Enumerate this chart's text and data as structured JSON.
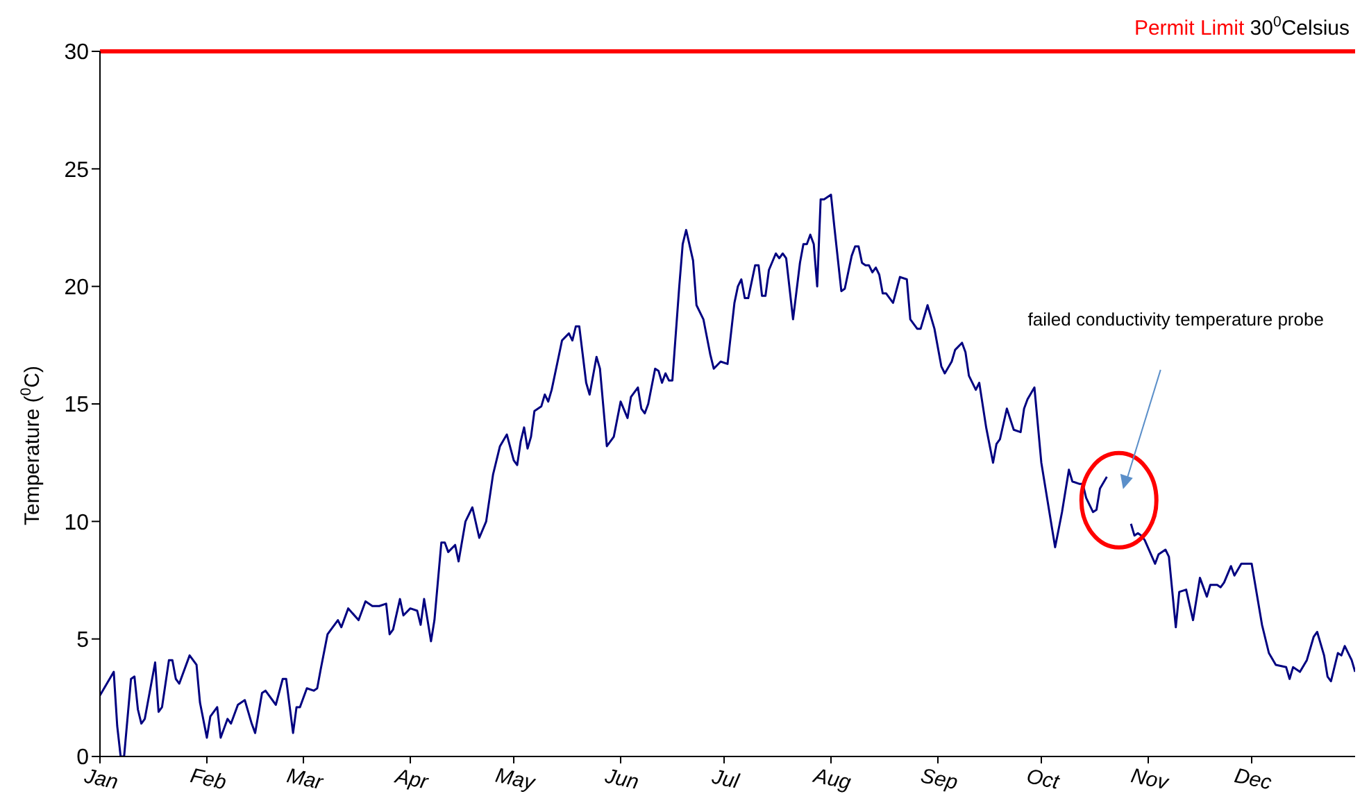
{
  "chart_data": {
    "type": "line",
    "ylabel": "Temperature ($^{0}$C)",
    "xlim": [
      "--01-01",
      "--12-31"
    ],
    "xticks": [
      {
        "value": "--01-01",
        "label": "Jan"
      },
      {
        "value": "--02-01",
        "label": "Feb"
      },
      {
        "value": "--03-01",
        "label": "Mar"
      },
      {
        "value": "--04-01",
        "label": "Apr"
      },
      {
        "value": "--05-01",
        "label": "May"
      },
      {
        "value": "--06-01",
        "label": "Jun"
      },
      {
        "value": "--07-01",
        "label": "Jul"
      },
      {
        "value": "--08-01",
        "label": "Aug"
      },
      {
        "value": "--09-01",
        "label": "Sep"
      },
      {
        "value": "--10-01",
        "label": "Oct"
      },
      {
        "value": "--11-01",
        "label": "Nov"
      },
      {
        "value": "--12-01",
        "label": "Dec"
      }
    ],
    "ylim": [
      0,
      30
    ],
    "yticks": [
      0,
      5,
      10,
      15,
      20,
      25,
      30
    ],
    "x": [
      "--01-01",
      "--01-05",
      "--01-06",
      "--01-07",
      "--01-08",
      "--01-10",
      "--01-11",
      "--01-12",
      "--01-13",
      "--01-14",
      "--01-17",
      "--01-18",
      "--01-19",
      "--01-21",
      "--01-22",
      "--01-23",
      "--01-24",
      "--01-27",
      "--01-29",
      "--01-30",
      "--02-01",
      "--02-02",
      "--02-04",
      "--02-05",
      "--02-07",
      "--02-08",
      "--02-10",
      "--02-12",
      "--02-14",
      "--02-15",
      "--02-17",
      "--02-18",
      "--02-21",
      "--02-23",
      "--02-24",
      "--02-26",
      "--02-27",
      "--02-28",
      "--03-02",
      "--03-04",
      "--03-05",
      "--03-06",
      "--03-08",
      "--03-11",
      "--03-12",
      "--03-14",
      "--03-17",
      "--03-19",
      "--03-21",
      "--03-23",
      "--03-25",
      "--03-26",
      "--03-27",
      "--03-29",
      "--03-30",
      "--04-01",
      "--04-03",
      "--04-04",
      "--04-05",
      "--04-07",
      "--04-08",
      "--04-10",
      "--04-11",
      "--04-12",
      "--04-14",
      "--04-15",
      "--04-17",
      "--04-19",
      "--04-21",
      "--04-23",
      "--04-25",
      "--04-27",
      "--04-29",
      "--05-01",
      "--05-02",
      "--05-03",
      "--05-04",
      "--05-05",
      "--05-06",
      "--05-07",
      "--05-09",
      "--05-10",
      "--05-11",
      "--05-12",
      "--05-15",
      "--05-17",
      "--05-18",
      "--05-19",
      "--05-20",
      "--05-22",
      "--05-23",
      "--05-25",
      "--05-26",
      "--05-28",
      "--05-30",
      "--06-01",
      "--06-03",
      "--06-04",
      "--06-06",
      "--06-07",
      "--06-08",
      "--06-09",
      "--06-11",
      "--06-12",
      "--06-13",
      "--06-14",
      "--06-15",
      "--06-16",
      "--06-18",
      "--06-19",
      "--06-20",
      "--06-22",
      "--06-23",
      "--06-25",
      "--06-27",
      "--06-28",
      "--06-30",
      "--07-02",
      "--07-04",
      "--07-05",
      "--07-06",
      "--07-07",
      "--07-08",
      "--07-09",
      "--07-10",
      "--07-11",
      "--07-12",
      "--07-13",
      "--07-14",
      "--07-16",
      "--07-17",
      "--07-18",
      "--07-19",
      "--07-21",
      "--07-23",
      "--07-24",
      "--07-25",
      "--07-26",
      "--07-27",
      "--07-28",
      "--07-29",
      "--07-30",
      "--08-01",
      "--08-02",
      "--08-04",
      "--08-05",
      "--08-07",
      "--08-08",
      "--08-09",
      "--08-10",
      "--08-11",
      "--08-12",
      "--08-13",
      "--08-14",
      "--08-15",
      "--08-16",
      "--08-17",
      "--08-19",
      "--08-21",
      "--08-23",
      "--08-24",
      "--08-26",
      "--08-27",
      "--08-29",
      "--08-31",
      "--09-02",
      "--09-03",
      "--09-05",
      "--09-06",
      "--09-08",
      "--09-09",
      "--09-10",
      "--09-12",
      "--09-13",
      "--09-15",
      "--09-17",
      "--09-18",
      "--09-19",
      "--09-21",
      "--09-23",
      "--09-25",
      "--09-26",
      "--09-27",
      "--09-29",
      "--10-01",
      "--10-05",
      "--10-07",
      "--10-09",
      "--10-10",
      "--10-12",
      "--10-13",
      "--10-14",
      "--10-16",
      "--10-17",
      "--10-18",
      "--10-20",
      "--10-23",
      "--10-27",
      "--10-28",
      "--10-29",
      "--10-30",
      "--10-31",
      "--11-03",
      "--11-04",
      "--11-06",
      "--11-07",
      "--11-09",
      "--11-10",
      "--11-12",
      "--11-14",
      "--11-16",
      "--11-18",
      "--11-19",
      "--11-21",
      "--11-22",
      "--11-23",
      "--11-25",
      "--11-26",
      "--11-28",
      "--12-01",
      "--12-04",
      "--12-06",
      "--12-08",
      "--12-11",
      "--12-12",
      "--12-13",
      "--12-15",
      "--12-17",
      "--12-19",
      "--12-20",
      "--12-22",
      "--12-23",
      "--12-24",
      "--12-26",
      "--12-27",
      "--12-28",
      "--12-30",
      "--12-31"
    ],
    "series": [
      {
        "color": "#000080",
        "values": [
          2.6,
          3.6,
          1.3,
          0,
          0,
          3.3,
          3.4,
          2.0,
          1.4,
          1.6,
          4.0,
          1.9,
          2.1,
          4.1,
          4.1,
          3.3,
          3.1,
          4.3,
          3.9,
          2.3,
          0.8,
          1.7,
          2.1,
          0.8,
          1.6,
          1.4,
          2.2,
          2.4,
          1.4,
          1.0,
          2.7,
          2.8,
          2.2,
          3.3,
          3.3,
          1.0,
          2.1,
          2.1,
          2.9,
          2.8,
          2.9,
          3.7,
          5.2,
          5.8,
          5.5,
          6.3,
          5.8,
          6.6,
          6.4,
          6.4,
          6.5,
          5.2,
          5.4,
          6.7,
          6.0,
          6.3,
          6.2,
          5.6,
          6.7,
          4.9,
          5.8,
          9.1,
          9.1,
          8.7,
          9.0,
          8.3,
          10.0,
          10.6,
          9.3,
          10.0,
          12.0,
          13.2,
          13.7,
          12.6,
          12.4,
          13.4,
          14.0,
          13.1,
          13.6,
          14.7,
          14.9,
          15.4,
          15.1,
          15.6,
          17.7,
          18.0,
          17.7,
          18.3,
          18.3,
          15.9,
          15.4,
          17.0,
          16.5,
          13.2,
          13.6,
          15.1,
          14.4,
          15.3,
          15.7,
          14.8,
          14.6,
          15.0,
          16.5,
          16.4,
          15.9,
          16.3,
          16.0,
          16.0,
          20.0,
          21.8,
          22.4,
          21.1,
          19.2,
          18.6,
          17.1,
          16.5,
          16.8,
          16.7,
          19.3,
          20.0,
          20.3,
          19.5,
          19.5,
          20.2,
          20.9,
          20.9,
          19.6,
          19.6,
          20.7,
          21.4,
          21.2,
          21.4,
          21.2,
          18.6,
          21.0,
          21.8,
          21.8,
          22.2,
          21.8,
          20.0,
          23.7,
          23.7,
          23.9,
          22.5,
          19.8,
          19.9,
          21.3,
          21.7,
          21.7,
          21.0,
          20.9,
          20.9,
          20.6,
          20.8,
          20.5,
          19.7,
          19.7,
          19.3,
          20.4,
          20.3,
          18.6,
          18.2,
          18.2,
          19.2,
          18.2,
          16.6,
          16.3,
          16.8,
          17.3,
          17.6,
          17.2,
          16.2,
          15.6,
          15.9,
          14.0,
          12.5,
          13.3,
          13.5,
          14.8,
          13.9,
          13.8,
          14.8,
          15.2,
          15.7,
          12.5,
          8.9,
          10.4,
          12.2,
          11.7,
          11.6,
          11.6,
          11.0,
          10.4,
          10.5,
          11.4,
          11.9,
          null,
          9.9,
          9.4,
          9.5,
          9.4,
          9.2,
          8.2,
          8.6,
          8.8,
          8.5,
          5.5,
          7.0,
          7.1,
          5.8,
          7.6,
          6.8,
          7.3,
          7.3,
          7.2,
          7.4,
          8.1,
          7.7,
          8.2,
          8.2,
          5.6,
          4.4,
          3.9,
          3.8,
          3.3,
          3.8,
          3.6,
          4.1,
          5.1,
          5.3,
          4.3,
          3.4,
          3.2,
          4.4,
          4.3,
          4.7,
          4.1,
          3.6
        ]
      }
    ],
    "ref_lines": [
      {
        "axis": "y",
        "value": 30,
        "label": "Permit Limit 30$^{0}$Celsius",
        "color": "#ff0000"
      }
    ],
    "annotations": [
      "failed conductivity temperature probe"
    ]
  }
}
